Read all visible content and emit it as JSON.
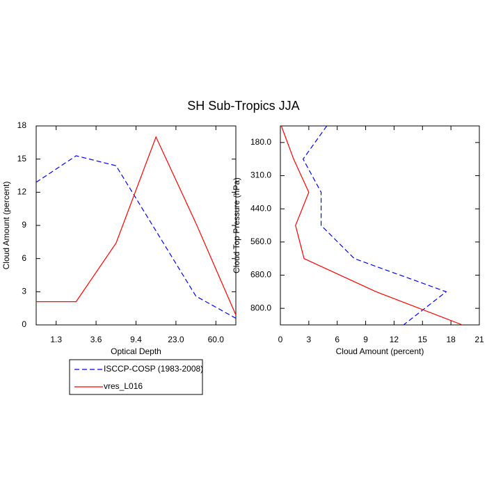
{
  "chart_data": [
    {
      "type": "line",
      "title": "SH Sub-Tropics JJA",
      "xlabel": "Optical Depth",
      "ylabel": "Cloud Amount (percent)",
      "x": [
        0,
        1,
        2,
        3,
        4,
        5
      ],
      "xlim": [
        0,
        5
      ],
      "xticks": [
        {
          "value": 0.5,
          "label": "1.3"
        },
        {
          "value": 1.5,
          "label": "3.6"
        },
        {
          "value": 2.5,
          "label": "9.4"
        },
        {
          "value": 3.5,
          "label": "23.0"
        },
        {
          "value": 4.5,
          "label": "60.0"
        }
      ],
      "ylim": [
        0,
        18
      ],
      "yticks": [
        0,
        3,
        6,
        9,
        12,
        15,
        18
      ],
      "series": [
        {
          "name": "ISCCP-COSP (1983-2008)",
          "color": "#0000ff",
          "dash": true,
          "values": [
            12.9,
            15.3,
            14.4,
            8.5,
            2.6,
            0.6
          ]
        },
        {
          "name": "vres_L016",
          "color": "#ff0000",
          "dash": false,
          "values": [
            2.1,
            2.1,
            7.4,
            17.0,
            9.2,
            0.9
          ]
        }
      ]
    },
    {
      "type": "line",
      "orientation": "horizontal",
      "xlabel": "Cloud Amount (percent)",
      "ylabel": "Cloud Top Pressure (hPa)",
      "y": [
        0,
        1,
        2,
        3,
        4,
        5,
        6
      ],
      "ylim": [
        6,
        0
      ],
      "yticks": [
        {
          "value": 0.5,
          "label": "180.0"
        },
        {
          "value": 1.5,
          "label": "310.0"
        },
        {
          "value": 2.5,
          "label": "440.0"
        },
        {
          "value": 3.5,
          "label": "560.0"
        },
        {
          "value": 4.5,
          "label": "680.0"
        },
        {
          "value": 5.5,
          "label": "800.0"
        }
      ],
      "xlim": [
        0,
        21
      ],
      "xticks": [
        0,
        3,
        6,
        9,
        12,
        15,
        18,
        21
      ],
      "series": [
        {
          "color": "#0000ff",
          "dash": true,
          "values": [
            4.9,
            2.4,
            4.3,
            4.3,
            7.8,
            17.5,
            13.0
          ]
        },
        {
          "color": "#ff0000",
          "dash": false,
          "values": [
            0.1,
            1.4,
            3.0,
            1.6,
            2.5,
            10.1,
            19.2
          ]
        }
      ]
    }
  ]
}
